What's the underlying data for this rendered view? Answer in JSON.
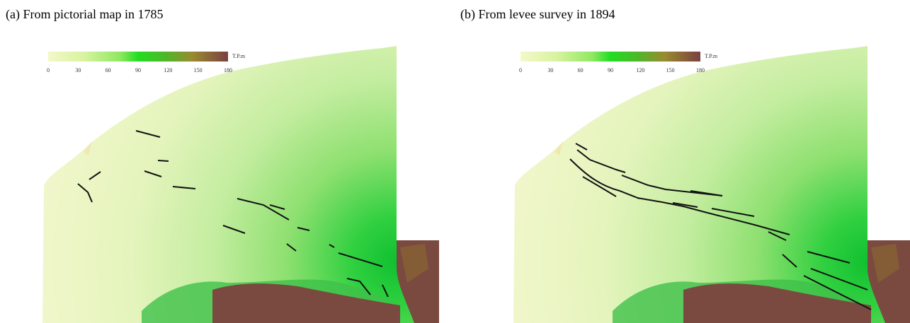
{
  "panels": [
    {
      "caption": "(a)  From pictorial map in 1785",
      "colorbar": {
        "unit": "T.P.m",
        "ticks": [
          0,
          30,
          60,
          90,
          120,
          150,
          180
        ]
      }
    },
    {
      "caption": "(b)  From levee survey in 1894",
      "colorbar": {
        "unit": "T.P.m",
        "ticks": [
          0,
          30,
          60,
          90,
          120,
          150,
          180
        ]
      }
    }
  ]
}
